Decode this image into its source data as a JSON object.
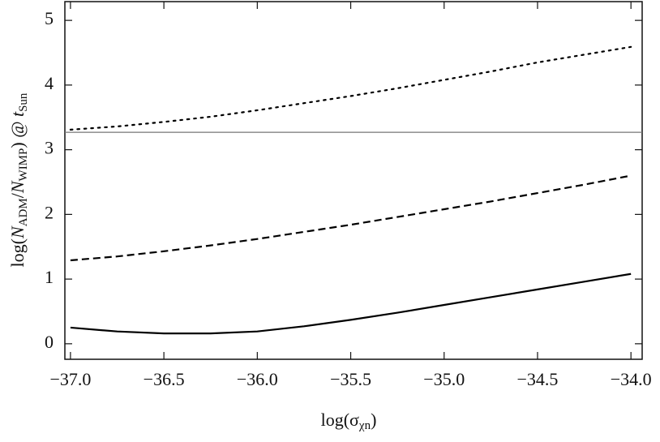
{
  "chart_data": {
    "type": "line",
    "xlabel": [
      "log(σ",
      "χn",
      ")"
    ],
    "ylabel": [
      "log(",
      "N",
      "ADM",
      "/",
      "N",
      "WIMP",
      ") @ ",
      "t",
      "Sun"
    ],
    "x": [
      -37.0,
      -36.75,
      -36.5,
      -36.25,
      -36.0,
      -35.75,
      -35.5,
      -35.25,
      -35.0,
      -34.75,
      -34.5,
      -34.25,
      -34.0
    ],
    "series": [
      {
        "color": "#000000",
        "dash": "solid",
        "values": [
          0.25,
          0.19,
          0.16,
          0.16,
          0.19,
          0.27,
          0.37,
          0.48,
          0.6,
          0.72,
          0.84,
          0.96,
          1.08
        ]
      },
      {
        "color": "#000000",
        "dash": "dashed",
        "values": [
          1.29,
          1.35,
          1.43,
          1.52,
          1.62,
          1.73,
          1.84,
          1.96,
          2.08,
          2.2,
          2.33,
          2.46,
          2.6
        ]
      },
      {
        "color": "#000000",
        "dash": "dotted",
        "values": [
          3.31,
          3.36,
          3.43,
          3.51,
          3.61,
          3.72,
          3.83,
          3.95,
          4.08,
          4.21,
          4.35,
          4.47,
          4.59
        ]
      }
    ],
    "hline": 3.27,
    "hline_color": "#777777",
    "xlim": [
      -37.03,
      -33.94
    ],
    "ylim": [
      -0.24,
      5.29
    ],
    "xticks": [
      {
        "value": -37.0,
        "label": "−37.0"
      },
      {
        "value": -36.5,
        "label": "−36.5"
      },
      {
        "value": -36.0,
        "label": "−36.0"
      },
      {
        "value": -35.5,
        "label": "−35.5"
      },
      {
        "value": -35.0,
        "label": "−35.0"
      },
      {
        "value": -34.5,
        "label": "−34.5"
      },
      {
        "value": -34.0,
        "label": "−34.0"
      }
    ],
    "yticks": [
      0,
      1,
      2,
      3,
      4,
      5
    ]
  }
}
